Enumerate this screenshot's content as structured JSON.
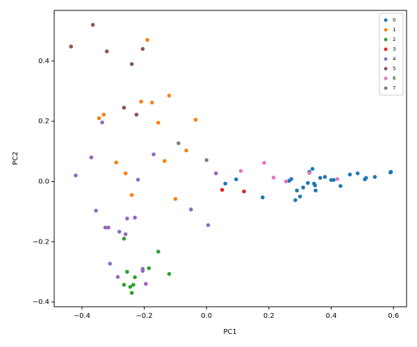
{
  "chart_data": {
    "type": "scatter",
    "xlabel": "PC1",
    "ylabel": "PC2",
    "xlim": [
      -0.489,
      0.642
    ],
    "ylim": [
      -0.416,
      0.568
    ],
    "xticks": [
      {
        "value": -0.4,
        "label": "−0.4"
      },
      {
        "value": -0.2,
        "label": "−0.2"
      },
      {
        "value": 0,
        "label": "0.0"
      },
      {
        "value": 0.2,
        "label": "0.2"
      },
      {
        "value": 0.4,
        "label": "0.4"
      },
      {
        "value": 0.6,
        "label": "0.6"
      }
    ],
    "yticks": [
      {
        "value": -0.4,
        "label": "−0.4"
      },
      {
        "value": -0.2,
        "label": "−0.2"
      },
      {
        "value": 0,
        "label": "0.0"
      },
      {
        "value": 0.2,
        "label": "0.2"
      },
      {
        "value": 0.4,
        "label": "0.4"
      }
    ],
    "legend": "upper right",
    "series": [
      {
        "name": "0",
        "color": "#1f77b4",
        "x": [
          0.18,
          0.06,
          0.095,
          0.265,
          0.272,
          0.285,
          0.29,
          0.3,
          0.31,
          0.325,
          0.33,
          0.34,
          0.345,
          0.348,
          0.35,
          0.365,
          0.38,
          0.4,
          0.408,
          0.43,
          0.46,
          0.485,
          0.508,
          0.512,
          0.54,
          0.59,
          0.592
        ],
        "y": [
          -0.053,
          -0.007,
          0.007,
          0.002,
          0.008,
          -0.062,
          -0.03,
          -0.05,
          -0.02,
          -0.005,
          0.032,
          0.042,
          -0.007,
          -0.013,
          -0.03,
          0.012,
          0.015,
          0.005,
          0.005,
          -0.015,
          0.023,
          0.027,
          0.007,
          0.012,
          0.015,
          0.03,
          0.032
        ]
      },
      {
        "name": "1",
        "color": "#ff7f0e",
        "x": [
          -0.19,
          -0.12,
          -0.21,
          -0.175,
          -0.33,
          -0.345,
          -0.155,
          -0.035,
          -0.065,
          -0.135,
          -0.29,
          -0.26,
          -0.24,
          -0.1
        ],
        "y": [
          0.47,
          0.285,
          0.265,
          0.262,
          0.222,
          0.21,
          0.195,
          0.205,
          0.103,
          0.068,
          0.063,
          0.027,
          -0.045,
          -0.058
        ]
      },
      {
        "name": "2",
        "color": "#2ca02c",
        "x": [
          -0.265,
          -0.155,
          -0.185,
          -0.255,
          -0.12,
          -0.23,
          -0.265,
          -0.235,
          -0.245,
          -0.24
        ],
        "y": [
          -0.19,
          -0.233,
          -0.288,
          -0.3,
          -0.307,
          -0.318,
          -0.343,
          -0.343,
          -0.35,
          -0.37
        ]
      },
      {
        "name": "3",
        "color": "#d62728",
        "x": [
          0.05,
          0.12
        ],
        "y": [
          -0.028,
          -0.033
        ]
      },
      {
        "name": "4",
        "color": "#9467bd",
        "x": [
          -0.335,
          -0.37,
          -0.17,
          -0.42,
          -0.22,
          0.03,
          -0.355,
          -0.05,
          -0.255,
          -0.23,
          -0.325,
          -0.315,
          0.005,
          -0.28,
          -0.26,
          -0.31,
          -0.205,
          -0.205,
          -0.285,
          -0.195
        ],
        "y": [
          0.196,
          0.08,
          0.09,
          0.02,
          0.006,
          0.027,
          -0.097,
          -0.093,
          -0.123,
          -0.12,
          -0.153,
          -0.153,
          -0.145,
          -0.167,
          -0.175,
          -0.273,
          -0.29,
          -0.297,
          -0.317,
          -0.34
        ]
      },
      {
        "name": "5",
        "color": "#8c564b",
        "x": [
          -0.365,
          -0.435,
          -0.32,
          -0.205,
          -0.24,
          -0.265,
          -0.225
        ],
        "y": [
          0.52,
          0.448,
          0.432,
          0.44,
          0.39,
          0.245,
          0.222
        ]
      },
      {
        "name": "6",
        "color": "#e377c2",
        "x": [
          0.11,
          0.185,
          0.215,
          0.255,
          0.33,
          0.42
        ],
        "y": [
          0.035,
          0.062,
          0.013,
          0,
          0.028,
          0.008
        ]
      },
      {
        "name": "7",
        "color": "#7f7f7f",
        "x": [
          -0.09,
          0
        ],
        "y": [
          0.127,
          0.071
        ]
      }
    ]
  }
}
